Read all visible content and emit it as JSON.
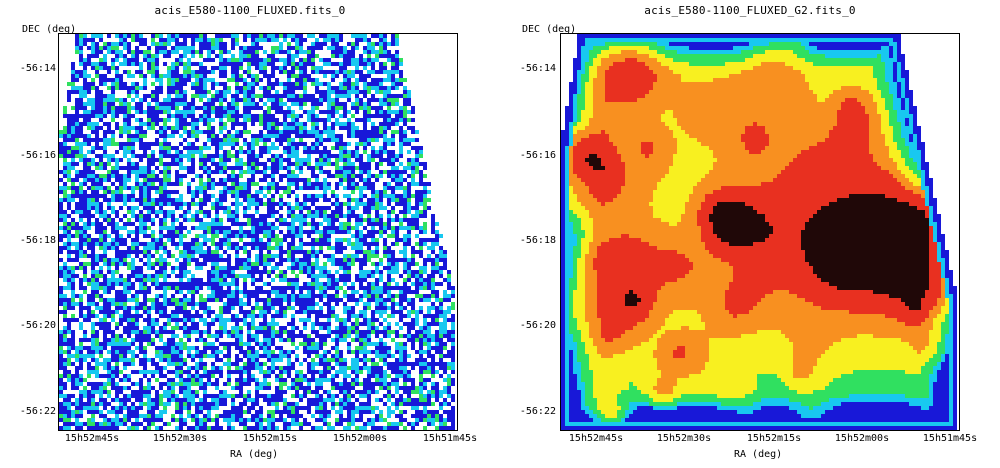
{
  "panels": [
    {
      "title": "acis_E580-1100_FLUXED.fits_0",
      "ylabel": "DEC (deg)",
      "xlabel": "RA (deg)",
      "yticks": [
        "-56:14",
        "-56:16",
        "-56:18",
        "-56:20",
        "-56:22"
      ],
      "xticks": [
        "15h52m45s",
        "15h52m30s",
        "15h52m15s",
        "15h52m00s",
        "15h51m45s"
      ],
      "colormap": "sparse-blue-cyan-green"
    },
    {
      "title": "acis_E580-1100_FLUXED_G2.fits_0",
      "ylabel": "DEC (deg)",
      "xlabel": "RA (deg)",
      "yticks": [
        "-56:14",
        "-56:16",
        "-56:18",
        "-56:20",
        "-56:22"
      ],
      "xticks": [
        "15h52m45s",
        "15h52m30s",
        "15h52m15s",
        "15h52m00s",
        "15h51m45s"
      ],
      "colormap": "smoothed-rainbow"
    }
  ],
  "colors": {
    "blue": "#1818d8",
    "cyan": "#18c8f0",
    "green": "#30e060",
    "yellow": "#f8f020",
    "orange": "#f89020",
    "red": "#e83020",
    "dark": "#200808"
  }
}
